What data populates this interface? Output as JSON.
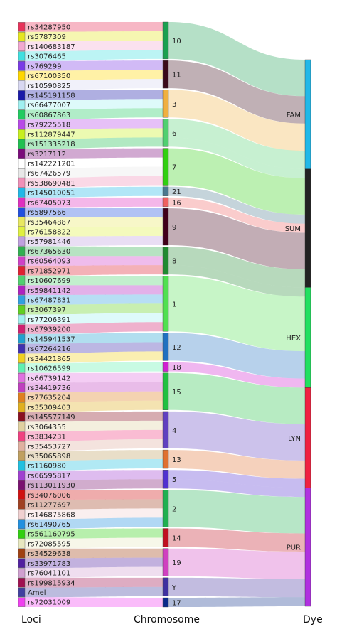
{
  "chart_data": {
    "type": "sankey",
    "columns": [
      "Loci",
      "Chromosome",
      "Dye"
    ],
    "loci": [
      "rs34287950",
      "rs5787309",
      "rs140683187",
      "rs3076465",
      "rs769299",
      "rs67100350",
      "rs10590825",
      "rs145191158",
      "rs66477007",
      "rs60867863",
      "rs79225518",
      "rs112879447",
      "rs151335218",
      "rs3217112",
      "rs142221201",
      "rs67426579",
      "rs538690481",
      "rs145010051",
      "rs67405073",
      "rs5897566",
      "rs35464887",
      "rs76158822",
      "rs57981446",
      "rs67365630",
      "rs60564093",
      "rs71852971",
      "rs10607699",
      "rs59841142",
      "rs67487831",
      "rs3067397",
      "rs77206391",
      "rs67939200",
      "rs145941537",
      "rs67264216",
      "rs34421865",
      "rs10626599",
      "rs66739142",
      "rs34419736",
      "rs77635204",
      "rs35309403",
      "rs145577149",
      "rs3064355",
      "rs3834231",
      "rs35453727",
      "rs35065898",
      "rs1160980",
      "rs66595817",
      "rs113011930",
      "rs34076006",
      "rs11277697",
      "rs146875868",
      "rs61490765",
      "rs561160795",
      "rs72085595",
      "rs34529638",
      "rs33971783",
      "rs76041101",
      "rs199815934",
      "Amel",
      "rs72031009"
    ],
    "locus_colors": [
      "#e8325a",
      "#e6e620",
      "#f2a8d0",
      "#40e0e0",
      "#7a3ae6",
      "#ffd700",
      "#d8d8f2",
      "#1a1aa8",
      "#a0f0f0",
      "#20cc60",
      "#b84ae8",
      "#c8f020",
      "#20c050",
      "#7a0a7a",
      "#ffffff",
      "#e8e8e8",
      "#f090b8",
      "#20b8e8",
      "#e030c0",
      "#2050e0",
      "#e8e860",
      "#e0f040",
      "#c0a0e0",
      "#30b050",
      "#d040c8",
      "#e02030",
      "#50d070",
      "#b020c0",
      "#30a0e0",
      "#60d020",
      "#a0f0f0",
      "#d02070",
      "#20a0d0",
      "#4030b0",
      "#f0d020",
      "#60f0b0",
      "#e070e0",
      "#c040c0",
      "#e08020",
      "#e0b020",
      "#8a1020",
      "#e0d0a0",
      "#f04080",
      "#e0b0a0",
      "#c0a060",
      "#20c0e0",
      "#a040d0",
      "#7a1070",
      "#d01010",
      "#a04020",
      "#f0d0d0",
      "#2090e0",
      "#30d010",
      "#e8e8c0",
      "#a04010",
      "#5020a0",
      "#d0a0d0",
      "#a01050",
      "#4040a0",
      "#f040f0"
    ],
    "chromosomes": [
      "10",
      "11",
      "3",
      "6",
      "7",
      "21",
      "16",
      "9",
      "8",
      "1",
      "12",
      "18",
      "15",
      "4",
      "13",
      "5",
      "2",
      "14",
      "19",
      "Y",
      "17"
    ],
    "chromosome_colors": [
      "#1aa050",
      "#3a0a1a",
      "#f0b040",
      "#50d070",
      "#30d010",
      "#4a7890",
      "#f06060",
      "#40001a",
      "#208a30",
      "#50e050",
      "#2070c0",
      "#d020d0",
      "#20c040",
      "#6040c0",
      "#e07030",
      "#5030d0",
      "#20b050",
      "#c01020",
      "#d040c0",
      "#4030a0",
      "#0a2a8a"
    ],
    "dyes": [
      "FAM",
      "SUM",
      "HEX",
      "LYN",
      "PUR"
    ],
    "dye_colors": [
      "#20b8e8",
      "#222222",
      "#20e060",
      "#f02040",
      "#b030e0"
    ],
    "locus_chromosome": [
      "10",
      "10",
      "10",
      "10",
      "11",
      "11",
      "11",
      "3",
      "3",
      "3",
      "6",
      "6",
      "6",
      "7",
      "7",
      "7",
      "7",
      "21",
      "16",
      "9",
      "9",
      "9",
      "9",
      "8",
      "8",
      "8",
      "1",
      "1",
      "1",
      "1",
      "1",
      "1",
      "12",
      "12",
      "12",
      "18",
      "15",
      "15",
      "15",
      "15",
      "4",
      "4",
      "4",
      "4",
      "13",
      "13",
      "5",
      "5",
      "2",
      "2",
      "2",
      "2",
      "14",
      "14",
      "19",
      "19",
      "19",
      "Y",
      "Y",
      "17"
    ],
    "locus_dye": [
      "FAM",
      "FAM",
      "FAM",
      "FAM",
      "FAM",
      "FAM",
      "FAM",
      "FAM",
      "FAM",
      "FAM",
      "FAM",
      "FAM",
      "SUM",
      "SUM",
      "SUM",
      "SUM",
      "SUM",
      "SUM",
      "SUM",
      "SUM",
      "SUM",
      "SUM",
      "SUM",
      "SUM",
      "SUM",
      "HEX",
      "HEX",
      "HEX",
      "HEX",
      "HEX",
      "HEX",
      "HEX",
      "HEX",
      "HEX",
      "HEX",
      "HEX",
      "LYN",
      "LYN",
      "LYN",
      "LYN",
      "LYN",
      "LYN",
      "LYN",
      "LYN",
      "LYN",
      "LYN",
      "LYN",
      "PUR",
      "PUR",
      "PUR",
      "PUR",
      "PUR",
      "PUR",
      "PUR",
      "PUR",
      "PUR",
      "PUR",
      "PUR",
      "PUR",
      "PUR"
    ]
  }
}
